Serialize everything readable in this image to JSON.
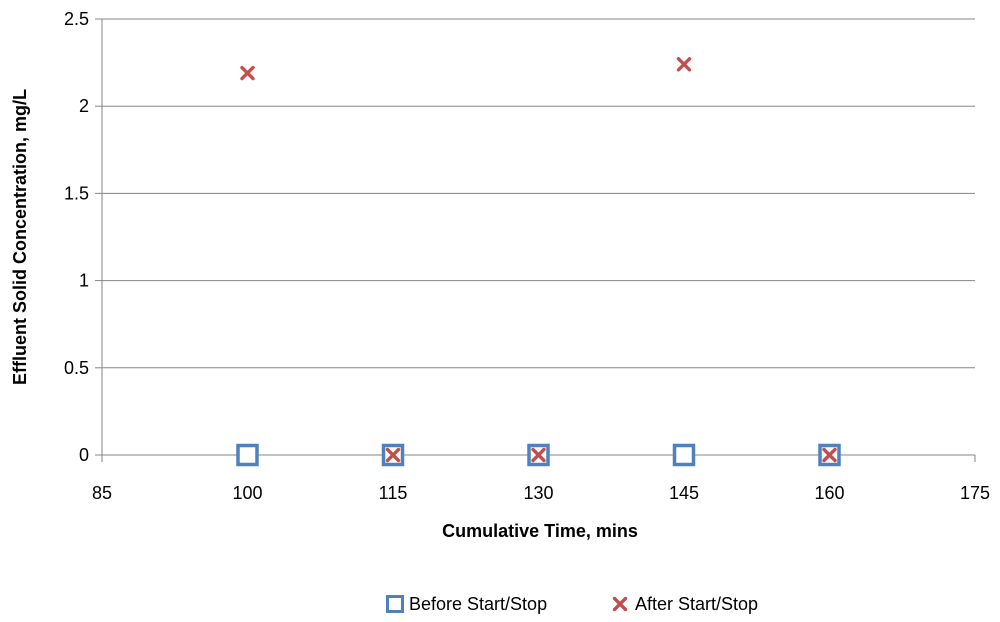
{
  "chart_data": {
    "type": "scatter",
    "xlabel": "Cumulative Time, mins",
    "ylabel": "Effluent Solid Concentration, mg/L",
    "xlim": [
      85,
      175
    ],
    "ylim": [
      0,
      2.5
    ],
    "x_ticks": [
      "85",
      "100",
      "115",
      "130",
      "145",
      "160",
      "175"
    ],
    "y_ticks": [
      "0",
      "0.5",
      "1",
      "1.5",
      "2",
      "2.5"
    ],
    "grid": "horizontal",
    "legend_position": "bottom",
    "series": [
      {
        "name": "Before Start/Stop",
        "marker": "square",
        "color": "#4F81BD",
        "x": [
          100,
          115,
          130,
          145,
          160
        ],
        "y": [
          0,
          0,
          0,
          0,
          0
        ]
      },
      {
        "name": "After Start/Stop",
        "marker": "x",
        "color": "#C0504D",
        "x": [
          100,
          115,
          130,
          145,
          160
        ],
        "y": [
          2.19,
          0,
          0,
          2.24,
          0
        ]
      }
    ]
  }
}
